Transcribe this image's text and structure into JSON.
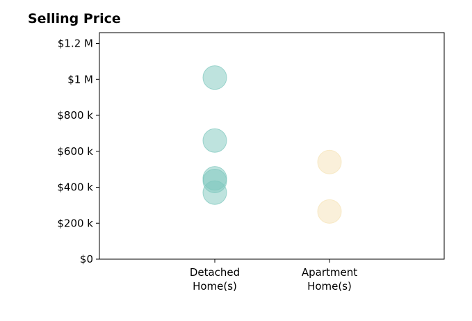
{
  "chart_data": {
    "type": "scatter",
    "title": "Selling Price",
    "xlabel": "",
    "ylabel": "",
    "categories": [
      "Detached\nHome(s)",
      "Apartment\nHome(s)"
    ],
    "ylim": [
      0,
      1260000
    ],
    "yticks": [
      {
        "value": 0,
        "label": "$0"
      },
      {
        "value": 200000,
        "label": "$200 k"
      },
      {
        "value": 400000,
        "label": "$400 k"
      },
      {
        "value": 600000,
        "label": "$600 k"
      },
      {
        "value": 800000,
        "label": "$800 k"
      },
      {
        "value": 1000000,
        "label": "$1 M"
      },
      {
        "value": 1200000,
        "label": "$1.2 M"
      }
    ],
    "series": [
      {
        "category": 0,
        "color": "#7ec8bd",
        "values": [
          1010000,
          660000,
          450000,
          435000,
          370000
        ]
      },
      {
        "category": 1,
        "color": "#f5e2b5",
        "values": [
          540000,
          265000
        ]
      }
    ],
    "grid": false
  }
}
